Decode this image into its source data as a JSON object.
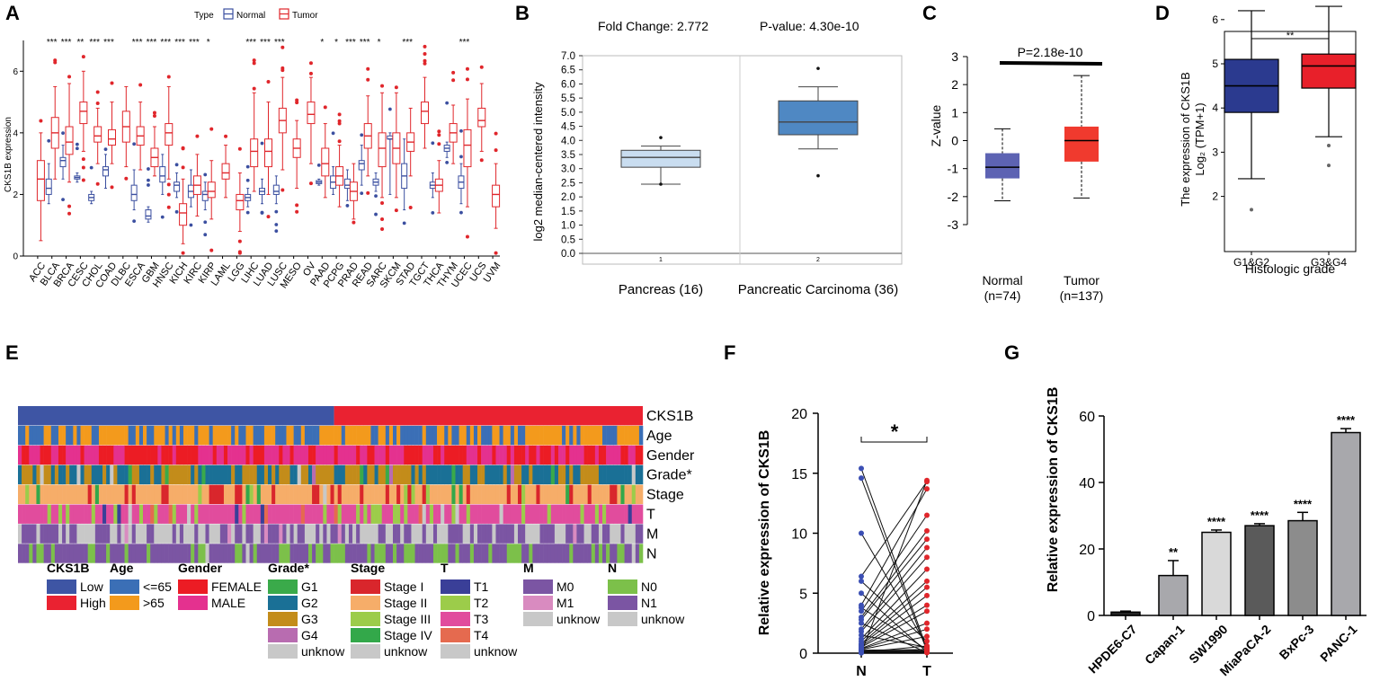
{
  "panelA": {
    "letter": "A",
    "legend": {
      "title": "Type",
      "normal": "Normal",
      "tumor": "Tumor"
    },
    "colors": {
      "normal": "#3b4fa0",
      "tumor": "#e0262b"
    },
    "chart_data": {
      "type": "box",
      "ylabel": "CKS1B expression",
      "ylim": [
        0,
        7
      ],
      "yticks": [
        0,
        2,
        4,
        6
      ],
      "categories": [
        "ACC",
        "BLCA",
        "BRCA",
        "CESC",
        "CHOL",
        "COAD",
        "DLBC",
        "ESCA",
        "GBM",
        "HNSC",
        "KICH",
        "KIRC",
        "KIRP",
        "LAML",
        "LGG",
        "LIHC",
        "LUAD",
        "LUSC",
        "MESO",
        "OV",
        "PAAD",
        "PCPG",
        "PRAD",
        "READ",
        "SARC",
        "SKCM",
        "STAD",
        "TGCT",
        "THCA",
        "THYM",
        "UCEC",
        "UCS",
        "UVM"
      ],
      "significance": [
        "",
        "***",
        "***",
        "**",
        "***",
        "***",
        "",
        "***",
        "***",
        "***",
        "***",
        "***",
        "*",
        "",
        "",
        "***",
        "***",
        "***",
        "",
        "",
        "*",
        "*",
        "***",
        "***",
        "*",
        "",
        "***",
        "",
        "",
        "",
        "***",
        "",
        ""
      ],
      "normal": [
        null,
        [
          1.7,
          2.0,
          2.2,
          2.5,
          3.0
        ],
        [
          2.5,
          2.9,
          3.1,
          3.2,
          3.6
        ],
        [
          2.4,
          2.5,
          2.55,
          2.6,
          2.7
        ],
        [
          1.7,
          1.8,
          1.9,
          2.0,
          2.1
        ],
        [
          2.2,
          2.6,
          2.8,
          2.9,
          3.3
        ],
        null,
        [
          1.5,
          1.8,
          2.0,
          2.3,
          2.8
        ],
        [
          1.1,
          1.2,
          1.3,
          1.5,
          1.6
        ],
        [
          2.0,
          2.4,
          2.6,
          2.9,
          3.3
        ],
        [
          1.9,
          2.1,
          2.3,
          2.4,
          2.7
        ],
        [
          1.6,
          1.9,
          2.1,
          2.3,
          2.8
        ],
        [
          1.5,
          1.8,
          2.0,
          2.1,
          2.4
        ],
        null,
        null,
        [
          1.6,
          1.8,
          1.9,
          2.0,
          2.2
        ],
        [
          1.7,
          2.0,
          2.1,
          2.2,
          2.5
        ],
        [
          1.7,
          2.0,
          2.1,
          2.3,
          2.6
        ],
        null,
        null,
        [
          2.3,
          2.35,
          2.4,
          2.45,
          2.5
        ],
        [
          2.0,
          2.2,
          2.4,
          2.6,
          2.9
        ],
        [
          1.8,
          2.2,
          2.3,
          2.5,
          2.8
        ],
        [
          2.3,
          2.8,
          3.0,
          3.1,
          3.6
        ],
        [
          2.1,
          2.3,
          2.4,
          2.5,
          2.7
        ],
        [
          2.0,
          3.8,
          3.8,
          3.9,
          4.0
        ],
        [
          1.5,
          2.2,
          2.6,
          3.0,
          3.8
        ],
        null,
        [
          1.9,
          2.2,
          2.3,
          2.4,
          2.7
        ],
        [
          3.2,
          3.4,
          3.5,
          3.6,
          3.7
        ],
        [
          1.7,
          2.2,
          2.4,
          2.6,
          3.0
        ],
        null,
        null
      ],
      "tumor": [
        [
          0.5,
          1.8,
          2.5,
          3.1,
          4.0
        ],
        [
          2.5,
          3.5,
          4.0,
          4.5,
          5.5
        ],
        [
          2.4,
          3.3,
          3.7,
          4.2,
          5.6
        ],
        [
          3.4,
          4.3,
          4.7,
          5.0,
          6.0
        ],
        [
          3.0,
          3.7,
          3.9,
          4.2,
          4.8
        ],
        [
          3.0,
          3.6,
          3.8,
          4.1,
          5.0
        ],
        [
          2.9,
          3.7,
          4.2,
          4.7,
          5.5
        ],
        [
          2.8,
          3.6,
          3.9,
          4.2,
          5.0
        ],
        [
          2.6,
          2.9,
          3.2,
          3.5,
          4.2
        ],
        [
          2.5,
          3.6,
          4.0,
          4.3,
          5.5
        ],
        [
          0.4,
          1.0,
          1.4,
          1.7,
          2.5
        ],
        [
          1.3,
          2.0,
          2.3,
          2.6,
          3.3
        ],
        [
          1.2,
          1.9,
          2.1,
          2.4,
          3.1
        ],
        [
          1.9,
          2.5,
          2.7,
          3.0,
          3.6
        ],
        [
          0.8,
          1.5,
          1.8,
          2.0,
          2.7
        ],
        [
          2.1,
          2.9,
          3.4,
          3.8,
          5.3
        ],
        [
          2.0,
          2.9,
          3.4,
          3.8,
          5.0
        ],
        [
          2.8,
          4.0,
          4.4,
          4.8,
          5.8
        ],
        [
          2.2,
          3.2,
          3.5,
          3.8,
          4.4
        ],
        [
          3.0,
          4.3,
          4.6,
          5.0,
          5.8
        ],
        [
          1.9,
          2.6,
          3.0,
          3.5,
          4.3
        ],
        [
          1.6,
          2.3,
          2.6,
          2.9,
          3.6
        ],
        [
          1.2,
          1.8,
          2.1,
          2.4,
          3.0
        ],
        [
          2.6,
          3.5,
          3.9,
          4.3,
          5.2
        ],
        [
          1.9,
          2.9,
          3.5,
          4.0,
          5.3
        ],
        [
          1.9,
          3.0,
          3.5,
          4.0,
          5.3
        ],
        [
          2.6,
          3.4,
          3.7,
          4.0,
          4.8
        ],
        [
          3.5,
          4.3,
          4.7,
          5.0,
          5.8
        ],
        [
          1.4,
          2.1,
          2.3,
          2.5,
          3.1
        ],
        [
          3.0,
          3.7,
          4.0,
          4.3,
          4.9
        ],
        [
          1.6,
          2.9,
          3.6,
          4.1,
          5.1
        ],
        [
          3.4,
          4.2,
          4.4,
          4.8,
          5.6
        ],
        [
          0.9,
          1.6,
          2.0,
          2.3,
          3.0
        ]
      ]
    }
  },
  "panelB": {
    "letter": "B",
    "fold_change": "Fold Change: 2.772",
    "pvalue": "P-value: 4.30e-10",
    "chart_data": {
      "type": "box",
      "ylabel": "log2 median-centered intensity",
      "ylim": [
        0.0,
        7.0
      ],
      "yticks": [
        "0.0",
        "0.5",
        "1.0",
        "1.5",
        "2.0",
        "2.5",
        "3.0",
        "3.5",
        "4.0",
        "4.5",
        "5.0",
        "5.5",
        "6.0",
        "6.5",
        "7.0"
      ],
      "index_labels": [
        "1",
        "2"
      ],
      "categories": [
        "Pancreas (16)",
        "Pancreatic Carcinoma (36)"
      ],
      "boxes": [
        [
          2.45,
          3.05,
          3.4,
          3.65,
          3.8
        ],
        [
          3.7,
          4.2,
          4.65,
          5.4,
          5.9
        ]
      ],
      "outliers": [
        [
          2.45,
          4.1
        ],
        [
          2.75,
          6.55
        ]
      ],
      "colors": [
        "#c9ddf0",
        "#4f88c3"
      ]
    }
  },
  "panelC": {
    "letter": "C",
    "pvalue": "P=2.18e-10",
    "chart_data": {
      "type": "box",
      "ylabel": "Z-value",
      "ylim": [
        -3,
        3
      ],
      "yticks": [
        "3",
        "2",
        "1",
        "0",
        "-1",
        "-2",
        "-3"
      ],
      "groups": [
        {
          "name": "Normal",
          "n": "(n=74)",
          "box": [
            -2.15,
            -1.35,
            -0.95,
            -0.45,
            0.42
          ],
          "color": "#5d63b3"
        },
        {
          "name": "Tumor",
          "n": "(n=137)",
          "box": [
            -2.05,
            -0.75,
            0.0,
            0.5,
            2.32
          ],
          "color": "#f03a2e"
        }
      ]
    }
  },
  "panelD": {
    "letter": "D",
    "sig": "**",
    "ylabel_line1": "The expression of CKS1B",
    "ylabel_line2": "Log₂ (TPM+1)",
    "xlabel": "Histologic grade",
    "chart_data": {
      "type": "box",
      "ylim": [
        1.5,
        6.5
      ],
      "yticks": [
        "2",
        "3",
        "4",
        "5",
        "6"
      ],
      "categories": [
        "G1&G2",
        "G3&G4"
      ],
      "boxes": [
        [
          2.4,
          3.9,
          4.5,
          5.1,
          6.2
        ],
        [
          3.35,
          4.45,
          4.95,
          5.22,
          6.3
        ]
      ],
      "outliers": [
        [
          1.7
        ],
        [
          3.15,
          2.7
        ]
      ],
      "colors": [
        "#2b3a8f",
        "#e8202a"
      ]
    }
  },
  "panelE": {
    "letter": "E",
    "row_labels": [
      "CKS1B",
      "Age",
      "Gender",
      "Grade*",
      "Stage",
      "T",
      "M",
      "N"
    ],
    "legend": [
      {
        "title": "CKS1B",
        "items": [
          {
            "label": "Low",
            "color": "#3e55a4"
          },
          {
            "label": "High",
            "color": "#ea2231"
          }
        ]
      },
      {
        "title": "Age",
        "items": [
          {
            "label": "<=65",
            "color": "#3b6fb6"
          },
          {
            "label": ">65",
            "color": "#f39a1c"
          }
        ]
      },
      {
        "title": "Gender",
        "items": [
          {
            "label": "FEMALE",
            "color": "#ec1c24"
          },
          {
            "label": "MALE",
            "color": "#e4318f"
          }
        ]
      },
      {
        "title": "Grade*",
        "items": [
          {
            "label": "G1",
            "color": "#3aaa4a"
          },
          {
            "label": "G2",
            "color": "#1a7096"
          },
          {
            "label": "G3",
            "color": "#c38c1a"
          },
          {
            "label": "G4",
            "color": "#b86cb0"
          },
          {
            "label": "unknow",
            "color": "#c8c8c8"
          }
        ]
      },
      {
        "title": "Stage",
        "items": [
          {
            "label": "Stage I",
            "color": "#d9262c"
          },
          {
            "label": "Stage II",
            "color": "#f6ad69"
          },
          {
            "label": "Stage III",
            "color": "#9ccc4a"
          },
          {
            "label": "Stage IV",
            "color": "#33a84a"
          },
          {
            "label": "unknow",
            "color": "#c8c8c8"
          }
        ]
      },
      {
        "title": "T",
        "items": [
          {
            "label": "T1",
            "color": "#3a3f98"
          },
          {
            "label": "T2",
            "color": "#9ccc4a"
          },
          {
            "label": "T3",
            "color": "#e14c9d"
          },
          {
            "label": "T4",
            "color": "#e56a4f"
          },
          {
            "label": "unknow",
            "color": "#c8c8c8"
          }
        ]
      },
      {
        "title": "M",
        "items": [
          {
            "label": "M0",
            "color": "#7b55a3"
          },
          {
            "label": "M1",
            "color": "#d98bc0"
          },
          {
            "label": "unknow",
            "color": "#c8c8c8"
          }
        ]
      },
      {
        "title": "N",
        "items": [
          {
            "label": "N0",
            "color": "#7cc04a"
          },
          {
            "label": "N1",
            "color": "#7b55a3"
          },
          {
            "label": "unknow",
            "color": "#c8c8c8"
          }
        ]
      }
    ]
  },
  "panelF": {
    "letter": "F",
    "sig": "*",
    "chart_data": {
      "type": "paired-dot",
      "ylabel": "Relative expression of  CKS1B",
      "ylim": [
        0,
        20
      ],
      "yticks": [
        "0",
        "5",
        "10",
        "15",
        "20"
      ],
      "categories": [
        "N",
        "T"
      ],
      "pairs": [
        [
          15.4,
          0.4
        ],
        [
          14.6,
          0.2
        ],
        [
          10.0,
          0.6
        ],
        [
          6.4,
          14.3
        ],
        [
          6.0,
          1.0
        ],
        [
          5.0,
          0.1
        ],
        [
          4.0,
          13.7
        ],
        [
          3.8,
          0.3
        ],
        [
          3.5,
          11.5
        ],
        [
          3.0,
          10.2
        ],
        [
          2.8,
          9.5
        ],
        [
          2.5,
          0.05
        ],
        [
          2.0,
          8.8
        ],
        [
          1.8,
          8.0
        ],
        [
          1.5,
          0.5
        ],
        [
          1.2,
          7.0
        ],
        [
          1.0,
          6.0
        ],
        [
          0.8,
          5.5
        ],
        [
          0.7,
          4.8
        ],
        [
          0.6,
          4.0
        ],
        [
          0.5,
          3.5
        ],
        [
          0.4,
          2.5
        ],
        [
          0.35,
          2.0
        ],
        [
          0.3,
          1.4
        ],
        [
          0.25,
          0.3
        ],
        [
          0.2,
          0.2
        ],
        [
          0.15,
          0.1
        ],
        [
          0.1,
          0.05
        ],
        [
          0.08,
          0.6
        ],
        [
          0.05,
          0.3
        ],
        [
          0.04,
          0.15
        ],
        [
          0.02,
          14.4
        ]
      ],
      "colors": {
        "N": "#3b4fb4",
        "T": "#e0262b"
      }
    }
  },
  "panelG": {
    "letter": "G",
    "chart_data": {
      "type": "bar",
      "ylabel": "Relative expression of  CKS1B",
      "ylim": [
        0,
        60
      ],
      "yticks": [
        "0",
        "20",
        "40",
        "60"
      ],
      "categories": [
        "HPDE6-C7",
        "Capan-1",
        "SW1990",
        "MiaPaCA-2",
        "BxPc-3",
        "PANC-1"
      ],
      "values": [
        1,
        12,
        25,
        27,
        28.5,
        55
      ],
      "errors": [
        0.3,
        4.5,
        0.7,
        0.6,
        2.5,
        1.2
      ],
      "significance": [
        "",
        "**",
        "****",
        "****",
        "****",
        "****"
      ],
      "colors": [
        "#262626",
        "#a8a8ac",
        "#d9d9d9",
        "#5a5a5a",
        "#8c8c8c",
        "#a8a8ac"
      ]
    }
  }
}
